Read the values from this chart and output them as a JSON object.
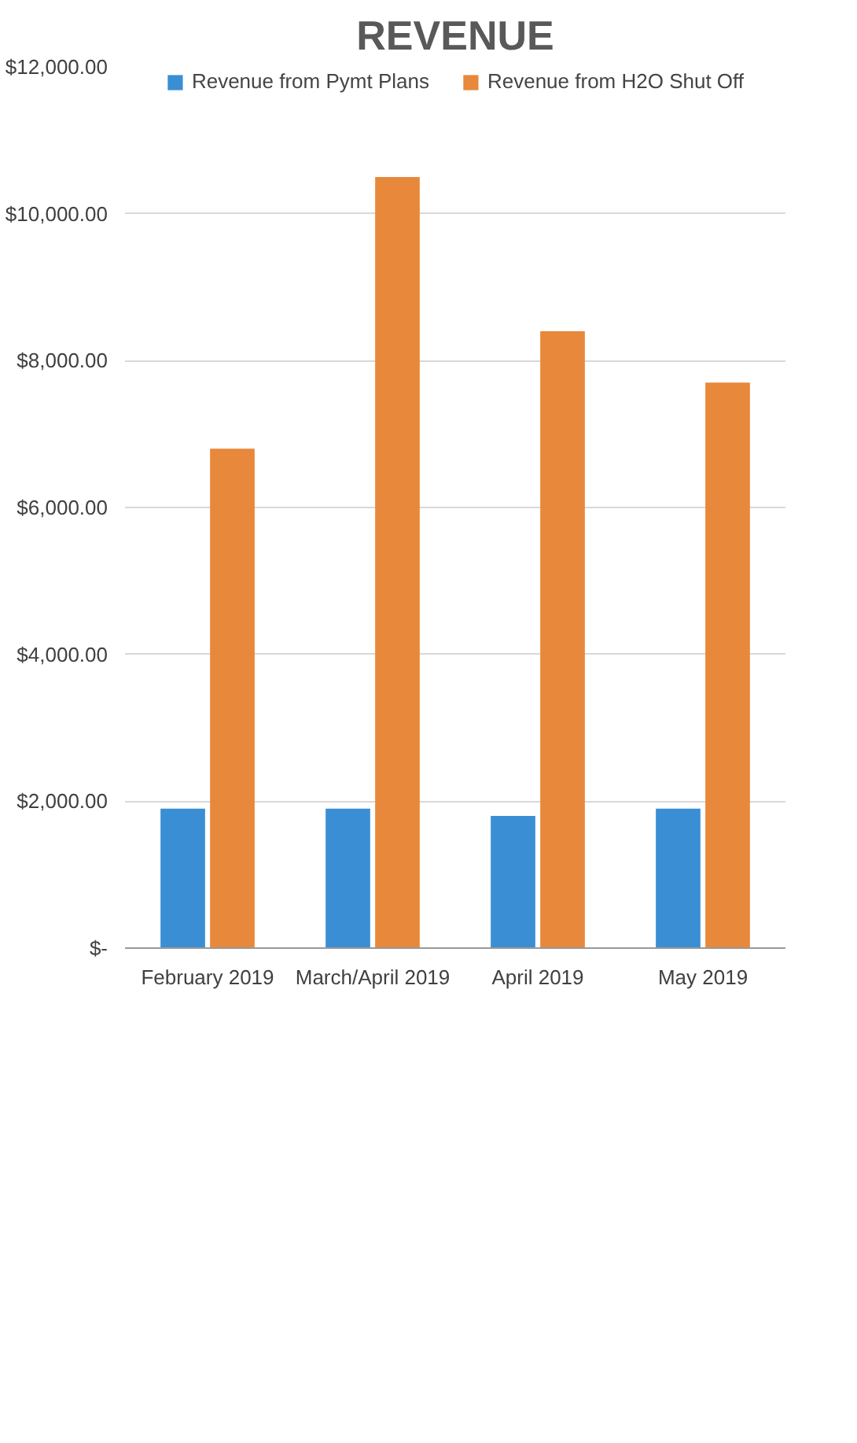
{
  "chart_data": {
    "type": "bar",
    "title": "REVENUE",
    "categories": [
      "February 2019",
      "March/April 2019",
      "April 2019",
      "May 2019"
    ],
    "series": [
      {
        "name": "Revenue from Pymt Plans",
        "color": "#3a8fd4",
        "values": [
          1900,
          1900,
          1800,
          1900
        ]
      },
      {
        "name": "Revenue from H2O Shut Off",
        "color": "#e8883a",
        "values": [
          6800,
          10500,
          8400,
          7700
        ]
      }
    ],
    "ylim": [
      0,
      12000
    ],
    "yticks": [
      {
        "value": 0,
        "label": "$-"
      },
      {
        "value": 2000,
        "label": "$2,000.00"
      },
      {
        "value": 4000,
        "label": "$4,000.00"
      },
      {
        "value": 6000,
        "label": "$6,000.00"
      },
      {
        "value": 8000,
        "label": "$8,000.00"
      },
      {
        "value": 10000,
        "label": "$10,000.00"
      },
      {
        "value": 12000,
        "label": "$12,000.00"
      }
    ],
    "grid": "y",
    "legend": "top"
  }
}
